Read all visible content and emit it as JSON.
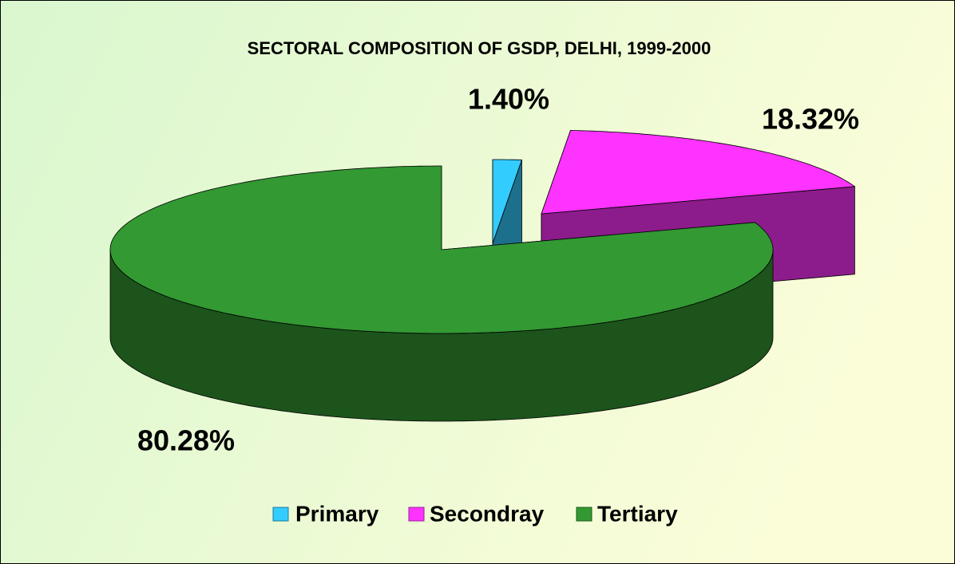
{
  "chart_data": {
    "type": "pie3d",
    "title": "SECTORAL COMPOSITION OF GSDP, DELHI, 1999-2000",
    "categories": [
      "Primary",
      "Secondray",
      "Tertiary"
    ],
    "values": [
      1.4,
      18.32,
      80.28
    ],
    "value_labels": [
      "1.40%",
      "18.32%",
      "80.28%"
    ],
    "colors": [
      "#33ccff",
      "#ff33ff",
      "#339933"
    ]
  }
}
